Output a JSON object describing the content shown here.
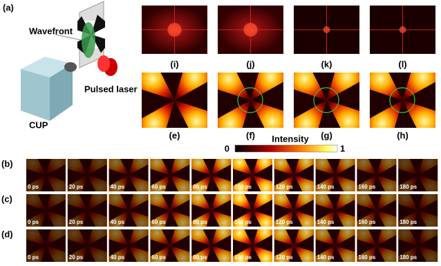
{
  "panel_a": {
    "label": "(a)",
    "wavefront": "Wavefront",
    "laser": "Pulsed laser",
    "camera": "CUP"
  },
  "spectra": [
    "(i)",
    "(j)",
    "(k)",
    "(l)"
  ],
  "images": [
    "(e)",
    "(f)",
    "(g)",
    "(h)"
  ],
  "colorbar": {
    "label": "Intensity",
    "min": 0,
    "max": 1
  },
  "rows": [
    {
      "label": "(b)",
      "frames": [
        "0 ps",
        "20 ps",
        "40 ps",
        "60 ps",
        "80 ps",
        "100 ps",
        "120 ps",
        "140 ps",
        "160 ps",
        "180 ps"
      ]
    },
    {
      "label": "(c)",
      "frames": [
        "0 ps",
        "20 ps",
        "40 ps",
        "60 ps",
        "80 ps",
        "100 ps",
        "120 ps",
        "140 ps",
        "160 ps",
        "180 ps"
      ]
    },
    {
      "label": "(d)",
      "frames": [
        "0 ps",
        "20 ps",
        "40 ps",
        "60 ps",
        "80 ps",
        "100 ps",
        "120 ps",
        "140 ps",
        "160 ps",
        "180 ps"
      ]
    }
  ]
}
